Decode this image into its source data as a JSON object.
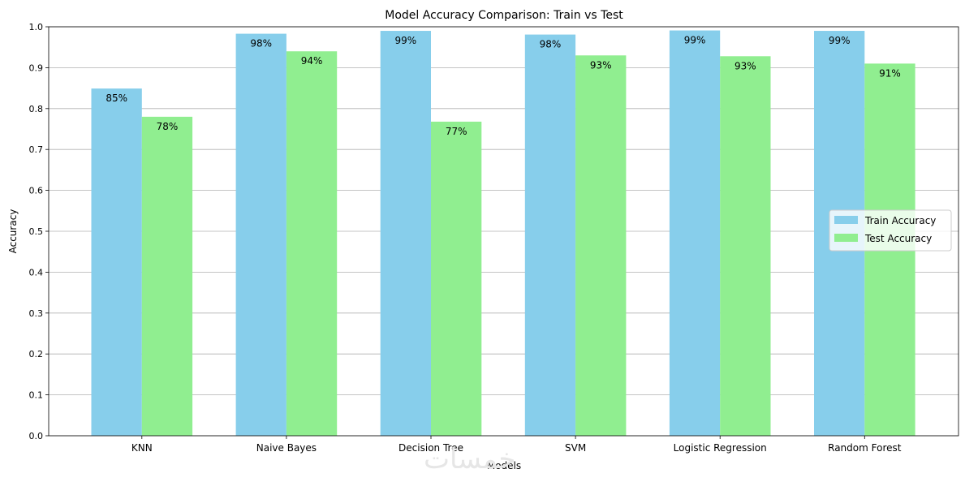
{
  "chart_data": {
    "type": "bar",
    "title": "Model Accuracy Comparison: Train vs Test",
    "xlabel": "Models",
    "ylabel": "Accuracy",
    "ylim": [
      0,
      1.0
    ],
    "yticks": [
      "0.0",
      "0.1",
      "0.2",
      "0.3",
      "0.4",
      "0.5",
      "0.6",
      "0.7",
      "0.8",
      "0.9",
      "1.0"
    ],
    "grid": "y",
    "legend_position": "center-right",
    "categories": [
      "KNN",
      "Naive Bayes",
      "Decision Tree",
      "SVM",
      "Logistic Regression",
      "Random Forest"
    ],
    "series": [
      {
        "name": "Train Accuracy",
        "color": "#87ceeb",
        "values": [
          0.849,
          0.983,
          0.99,
          0.981,
          0.991,
          0.99
        ],
        "labels": [
          "85%",
          "98%",
          "99%",
          "98%",
          "99%",
          "99%"
        ]
      },
      {
        "name": "Test Accuracy",
        "color": "#90ee90",
        "values": [
          0.78,
          0.94,
          0.768,
          0.93,
          0.928,
          0.91
        ],
        "labels": [
          "78%",
          "94%",
          "77%",
          "93%",
          "93%",
          "91%"
        ]
      }
    ]
  },
  "watermark": {
    "text": "خمسات"
  }
}
